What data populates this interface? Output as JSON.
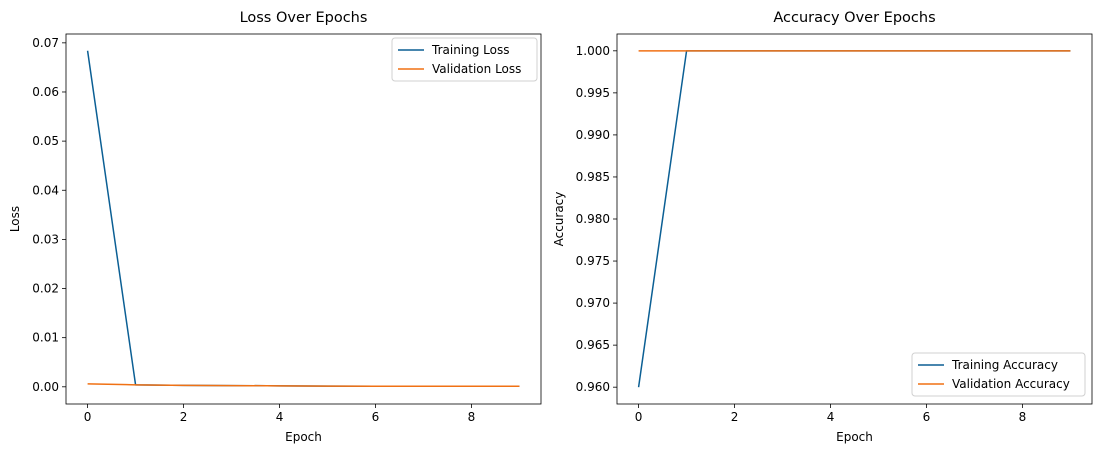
{
  "colors": {
    "training": "#0b5f94",
    "validation": "#f07114",
    "axis": "#000000",
    "legend_border": "#d0d0d0"
  },
  "chart_data": [
    {
      "type": "line",
      "title": "Loss Over Epochs",
      "xlabel": "Epoch",
      "ylabel": "Loss",
      "xlim": [
        -0.45,
        9.45
      ],
      "ylim": [
        -0.0035,
        0.0718
      ],
      "xticks": [
        0,
        2,
        4,
        6,
        8
      ],
      "xtick_labels": [
        "0",
        "2",
        "4",
        "6",
        "8"
      ],
      "yticks": [
        0.0,
        0.01,
        0.02,
        0.03,
        0.04,
        0.05,
        0.06,
        0.07
      ],
      "ytick_labels": [
        "0.00",
        "0.01",
        "0.02",
        "0.03",
        "0.04",
        "0.05",
        "0.06",
        "0.07"
      ],
      "x": [
        0,
        1,
        2,
        3,
        4,
        5,
        6,
        7,
        8,
        9
      ],
      "series": [
        {
          "name": "Training Loss",
          "values": [
            0.0684,
            0.0004,
            0.0003,
            0.00025,
            0.0002,
            0.00015,
            0.0001,
            0.0001,
            0.0001,
            0.0001
          ]
        },
        {
          "name": "Validation Loss",
          "values": [
            0.0006,
            0.0004,
            0.0003,
            0.00025,
            0.0002,
            0.00015,
            0.0001,
            0.0001,
            0.0001,
            0.0001
          ]
        }
      ],
      "grid": false,
      "legend": "upper right"
    },
    {
      "type": "line",
      "title": "Accuracy Over Epochs",
      "xlabel": "Epoch",
      "ylabel": "Accuracy",
      "xlim": [
        -0.45,
        9.45
      ],
      "ylim": [
        0.958,
        1.002
      ],
      "xticks": [
        0,
        2,
        4,
        6,
        8
      ],
      "xtick_labels": [
        "0",
        "2",
        "4",
        "6",
        "8"
      ],
      "yticks": [
        0.96,
        0.965,
        0.97,
        0.975,
        0.98,
        0.985,
        0.99,
        0.995,
        1.0
      ],
      "ytick_labels": [
        "0.960",
        "0.965",
        "0.970",
        "0.975",
        "0.980",
        "0.985",
        "0.990",
        "0.995",
        "1.000"
      ],
      "x": [
        0,
        1,
        2,
        3,
        4,
        5,
        6,
        7,
        8,
        9
      ],
      "series": [
        {
          "name": "Training Accuracy",
          "values": [
            0.96,
            1.0,
            1.0,
            1.0,
            1.0,
            1.0,
            1.0,
            1.0,
            1.0,
            1.0
          ]
        },
        {
          "name": "Validation Accuracy",
          "values": [
            1.0,
            1.0,
            1.0,
            1.0,
            1.0,
            1.0,
            1.0,
            1.0,
            1.0,
            1.0
          ]
        }
      ],
      "grid": false,
      "legend": "lower right"
    }
  ]
}
